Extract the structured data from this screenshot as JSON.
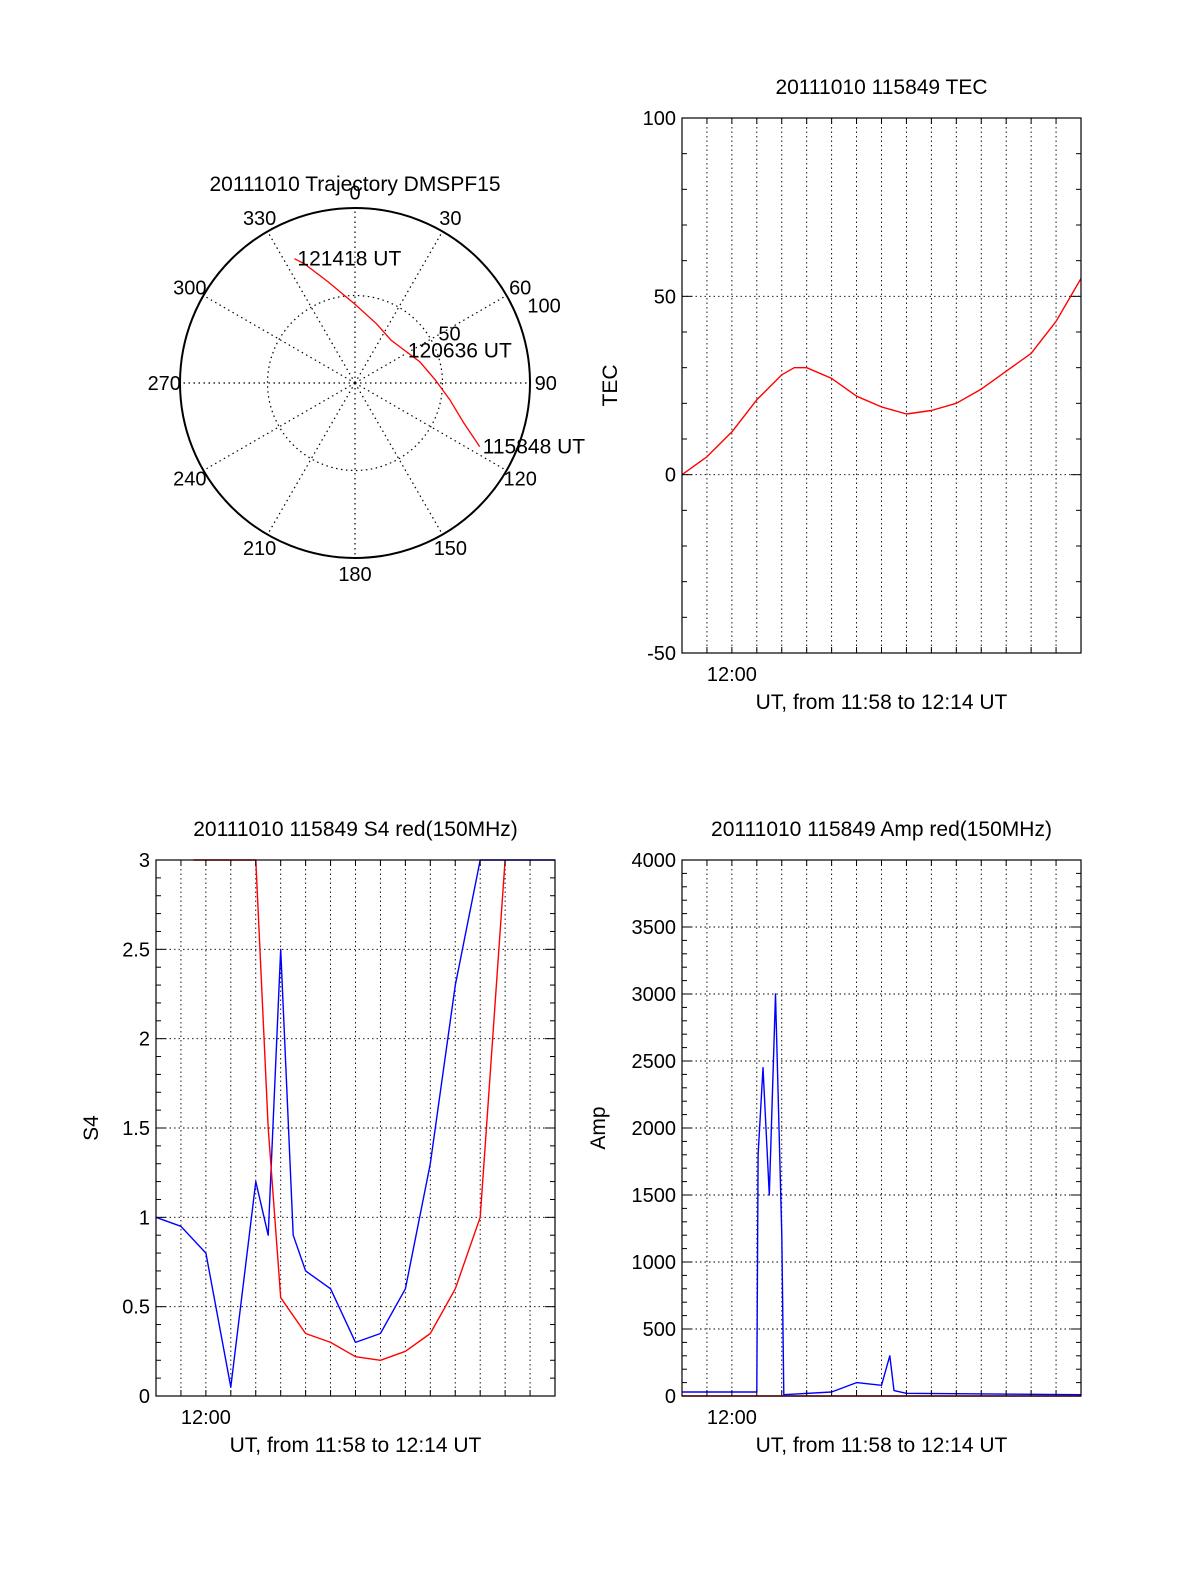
{
  "chart_data": [
    {
      "type": "polar",
      "title": "20111010 Trajectory DMSPF15",
      "azimuth_labels": [
        "0",
        "30",
        "60",
        "90",
        "120",
        "150",
        "180",
        "210",
        "240",
        "270",
        "300",
        "330"
      ],
      "radial_labels": [
        "50",
        "100"
      ],
      "radial_ticks": [
        50,
        100
      ],
      "rlim": [
        0,
        100
      ],
      "grid": true,
      "series": [
        {
          "color": "#ff0000",
          "points": [
            {
              "az": 117,
              "r": 80
            },
            {
              "az": 110,
              "r": 66
            },
            {
              "az": 100,
              "r": 55
            },
            {
              "az": 88,
              "r": 46
            },
            {
              "az": 72,
              "r": 39
            },
            {
              "az": 57,
              "r": 34
            },
            {
              "az": 40,
              "r": 32
            },
            {
              "az": 20,
              "r": 36
            },
            {
              "az": 0,
              "r": 45
            },
            {
              "az": -15,
              "r": 60
            },
            {
              "az": -23,
              "r": 74
            },
            {
              "az": -26,
              "r": 79
            }
          ]
        }
      ],
      "annotations": [
        {
          "text": "121418 UT",
          "az": -26,
          "r": 79
        },
        {
          "text": "120636 UT",
          "az": 57,
          "r": 34
        },
        {
          "text": "115848 UT",
          "az": 117,
          "r": 80
        }
      ]
    },
    {
      "type": "line",
      "title": "20111010 115849 TEC",
      "xlabel": "UT, from 11:58 to 12:14 UT",
      "ylabel": "TEC",
      "x_tick_labels": [
        "12:00"
      ],
      "xlim": [
        "11:58",
        "12:14"
      ],
      "ylim": [
        -50,
        100
      ],
      "y_ticks": [
        -50,
        0,
        50,
        100
      ],
      "grid": true,
      "series": [
        {
          "color": "#ff0000",
          "x": [
            "11:58",
            "11:59",
            "12:00",
            "12:01",
            "12:02",
            "12:02:30",
            "12:03",
            "12:04",
            "12:05",
            "12:06",
            "12:07",
            "12:08",
            "12:09",
            "12:10",
            "12:11",
            "12:12",
            "12:13",
            "12:14"
          ],
          "y": [
            0,
            5,
            12,
            21,
            28,
            30,
            30,
            27,
            22,
            19,
            17,
            18,
            20,
            24,
            29,
            34,
            43,
            55
          ]
        }
      ]
    },
    {
      "type": "line",
      "title": "20111010 115849 S4 red(150MHz)",
      "xlabel": "UT, from 11:58 to 12:14 UT",
      "ylabel": "S4",
      "x_tick_labels": [
        "12:00"
      ],
      "xlim": [
        "11:58",
        "12:14"
      ],
      "ylim": [
        0,
        3
      ],
      "y_ticks": [
        0,
        0.5,
        1,
        1.5,
        2,
        2.5,
        3
      ],
      "y_tick_labels": [
        "0",
        "0.5",
        "1",
        "1.5",
        "2",
        "2.5",
        "3"
      ],
      "grid": true,
      "series": [
        {
          "color": "#0000ff",
          "x": [
            "11:58",
            "11:59",
            "12:00",
            "12:01",
            "12:02",
            "12:02:30",
            "12:03",
            "12:03:30",
            "12:04",
            "12:05",
            "12:06",
            "12:07",
            "12:08",
            "12:09",
            "12:10",
            "12:11",
            "12:12",
            "12:13",
            "12:14"
          ],
          "y": [
            1.0,
            0.95,
            0.8,
            0.05,
            1.2,
            0.9,
            2.5,
            0.9,
            0.7,
            0.6,
            0.3,
            0.35,
            0.6,
            1.3,
            2.3,
            3.0,
            3.0,
            3.0,
            3.0
          ]
        },
        {
          "color": "#ff0000",
          "x": [
            "11:59:30",
            "12:02",
            "12:02:30",
            "12:03",
            "12:04",
            "12:05",
            "12:06",
            "12:07",
            "12:08",
            "12:09",
            "12:10",
            "12:11",
            "12:12"
          ],
          "y": [
            3.0,
            3.0,
            1.5,
            0.55,
            0.35,
            0.3,
            0.22,
            0.2,
            0.25,
            0.35,
            0.6,
            1.0,
            3.0
          ]
        }
      ]
    },
    {
      "type": "line",
      "title": "20111010 115849 Amp red(150MHz)",
      "xlabel": "UT, from 11:58 to 12:14 UT",
      "ylabel": "Amp",
      "x_tick_labels": [
        "12:00"
      ],
      "xlim": [
        "11:58",
        "12:14"
      ],
      "ylim": [
        0,
        4000
      ],
      "y_ticks": [
        0,
        500,
        1000,
        1500,
        2000,
        2500,
        3000,
        3500,
        4000
      ],
      "grid": true,
      "series": [
        {
          "color": "#0000ff",
          "x": [
            "11:58",
            "12:01",
            "12:01:03",
            "12:01:15",
            "12:01:30",
            "12:01:45",
            "12:02",
            "12:02:05",
            "12:04",
            "12:05",
            "12:06",
            "12:06:20",
            "12:06:30",
            "12:07",
            "12:14"
          ],
          "y": [
            30,
            30,
            1800,
            2450,
            1500,
            3000,
            1200,
            10,
            30,
            100,
            80,
            300,
            40,
            20,
            10
          ]
        },
        {
          "color": "#ff0000",
          "x": [
            "11:58",
            "12:14"
          ],
          "y": [
            0,
            0
          ]
        }
      ]
    }
  ]
}
